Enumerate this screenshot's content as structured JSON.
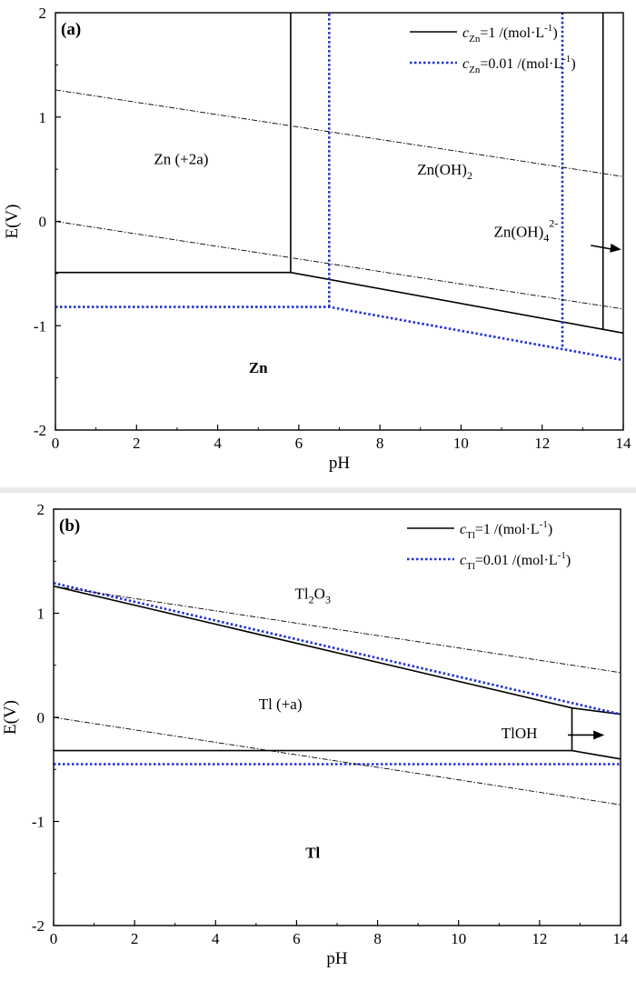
{
  "chart_data": [
    {
      "type": "line",
      "panel_label": "(a)",
      "xlabel": "pH",
      "ylabel": "E(V)",
      "xlim": [
        0,
        14
      ],
      "ylim": [
        -2,
        2
      ],
      "xticks": [
        "0",
        "2",
        "4",
        "6",
        "8",
        "10",
        "12",
        "14"
      ],
      "yticks": [
        "-2",
        "-1",
        "0",
        "1",
        "2"
      ],
      "legend": {
        "placement": "top-right",
        "entries": [
          {
            "sym": "c",
            "sub": "Zn",
            "text": "=1 /(mol·L",
            "sup": "-1",
            "tail": ")",
            "style": "solid",
            "color": "#000000"
          },
          {
            "sym": "c",
            "sub": "Zn",
            "text": "=0.01 /(mol·L",
            "sup": "-1",
            "tail": ")",
            "style": "dotted",
            "color": "#1f2ee0"
          }
        ]
      },
      "series": [
        {
          "style": "solid",
          "color": "#000000",
          "points": [
            [
              0,
              -0.49
            ],
            [
              5.8,
              -0.49
            ],
            [
              14,
              -1.07
            ]
          ]
        },
        {
          "style": "solid",
          "color": "#000000",
          "points": [
            [
              5.8,
              -0.49
            ],
            [
              5.8,
              2
            ]
          ]
        },
        {
          "style": "solid",
          "color": "#000000",
          "points": [
            [
              13.5,
              -1.03
            ],
            [
              13.5,
              2
            ]
          ]
        },
        {
          "style": "dotted",
          "color": "#1f2ee0",
          "points": [
            [
              0,
              -0.82
            ],
            [
              6.75,
              -0.82
            ],
            [
              14,
              -1.33
            ]
          ]
        },
        {
          "style": "dotted",
          "color": "#1f2ee0",
          "points": [
            [
              6.75,
              -0.82
            ],
            [
              6.75,
              2
            ]
          ]
        },
        {
          "style": "dotted",
          "color": "#1f2ee0",
          "points": [
            [
              12.5,
              -1.2
            ],
            [
              12.5,
              2
            ]
          ]
        },
        {
          "style": "dashdot",
          "color": "#000000",
          "points": [
            [
              0,
              1.26
            ],
            [
              14,
              0.43
            ]
          ]
        },
        {
          "style": "dashdot",
          "color": "#000000",
          "points": [
            [
              0,
              0.0
            ],
            [
              14,
              -0.84
            ]
          ]
        }
      ],
      "annotations": [
        {
          "base": "Zn (+2a)",
          "x": 3.1,
          "y": 0.55
        },
        {
          "base": "Zn(OH)",
          "sub": "2",
          "x": 9.6,
          "y": 0.45
        },
        {
          "base": "Zn(OH)",
          "sub": "4",
          "sup": "2-",
          "x": 11.6,
          "y": -0.15
        },
        {
          "base": "Zn",
          "bold": true,
          "x": 5.0,
          "y": -1.45
        }
      ],
      "arrow": {
        "from": [
          13.2,
          -0.23
        ],
        "to": [
          13.95,
          -0.27
        ]
      }
    },
    {
      "type": "line",
      "panel_label": "(b)",
      "xlabel": "pH",
      "ylabel": "E(V)",
      "xlim": [
        0,
        14
      ],
      "ylim": [
        -2,
        2
      ],
      "xticks": [
        "0",
        "2",
        "4",
        "6",
        "8",
        "10",
        "12",
        "14"
      ],
      "yticks": [
        "-2",
        "-1",
        "0",
        "1",
        "2"
      ],
      "legend": {
        "placement": "top-right",
        "entries": [
          {
            "sym": "c",
            "sub": "Tl",
            "text": "=1 /(mol·L",
            "sup": "-1",
            "tail": ")",
            "style": "solid",
            "color": "#000000"
          },
          {
            "sym": "c",
            "sub": "Tl",
            "text": "=0.01 /(mol·L",
            "sup": "-1",
            "tail": ")",
            "style": "dotted",
            "color": "#1f2ee0"
          }
        ]
      },
      "series": [
        {
          "style": "solid",
          "color": "#000000",
          "points": [
            [
              0,
              1.26
            ],
            [
              12.8,
              0.09
            ],
            [
              14,
              0.03
            ]
          ]
        },
        {
          "style": "solid",
          "color": "#000000",
          "points": [
            [
              0,
              -0.32
            ],
            [
              12.8,
              -0.32
            ],
            [
              14,
              -0.4
            ]
          ]
        },
        {
          "style": "solid",
          "color": "#000000",
          "points": [
            [
              12.8,
              0.09
            ],
            [
              12.8,
              -0.32
            ]
          ]
        },
        {
          "style": "dotted",
          "color": "#1f2ee0",
          "points": [
            [
              0,
              1.29
            ],
            [
              14,
              0.03
            ]
          ]
        },
        {
          "style": "dotted",
          "color": "#1f2ee0",
          "points": [
            [
              0,
              -0.45
            ],
            [
              14,
              -0.45
            ]
          ]
        },
        {
          "style": "dashdot",
          "color": "#000000",
          "points": [
            [
              0,
              1.26
            ],
            [
              14,
              0.43
            ]
          ]
        },
        {
          "style": "dashdot",
          "color": "#000000",
          "points": [
            [
              0,
              0.0
            ],
            [
              14,
              -0.84
            ]
          ]
        }
      ],
      "annotations": [
        {
          "base": "Tl",
          "sub": "2",
          "tail": "O",
          "sub2": "3",
          "x": 6.4,
          "y": 1.14
        },
        {
          "base": "Tl (+a)",
          "x": 5.6,
          "y": 0.08
        },
        {
          "base": "TlOH",
          "x": 11.5,
          "y": -0.2
        },
        {
          "base": "Tl",
          "bold": true,
          "x": 6.4,
          "y": -1.35
        }
      ],
      "arrow": {
        "from": [
          12.7,
          -0.17
        ],
        "to": [
          13.6,
          -0.17
        ]
      }
    }
  ]
}
